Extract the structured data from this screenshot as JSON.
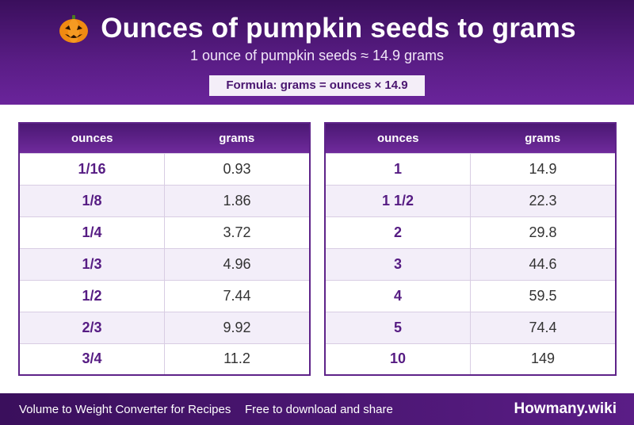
{
  "header": {
    "icon": "pumpkin-icon",
    "title": "Ounces of pumpkin seeds to grams",
    "subtitle": "1 ounce of pumpkin seeds ≈ 14.9 grams",
    "formula": "Formula: grams = ounces × 14.9"
  },
  "table_left": {
    "headers": [
      "ounces",
      "grams"
    ],
    "rows": [
      {
        "ounces": "1/16",
        "grams": "0.93"
      },
      {
        "ounces": "1/8",
        "grams": "1.86"
      },
      {
        "ounces": "1/4",
        "grams": "3.72"
      },
      {
        "ounces": "1/3",
        "grams": "4.96"
      },
      {
        "ounces": "1/2",
        "grams": "7.44"
      },
      {
        "ounces": "2/3",
        "grams": "9.92"
      },
      {
        "ounces": "3/4",
        "grams": "11.2"
      }
    ]
  },
  "table_right": {
    "headers": [
      "ounces",
      "grams"
    ],
    "rows": [
      {
        "ounces": "1",
        "grams": "14.9"
      },
      {
        "ounces": "1 1/2",
        "grams": "22.3"
      },
      {
        "ounces": "2",
        "grams": "29.8"
      },
      {
        "ounces": "3",
        "grams": "44.6"
      },
      {
        "ounces": "4",
        "grams": "59.5"
      },
      {
        "ounces": "5",
        "grams": "74.4"
      },
      {
        "ounces": "10",
        "grams": "149"
      }
    ]
  },
  "footer": {
    "left_text": "Volume to Weight Converter for Recipes",
    "mid_text": "Free to download and share",
    "brand": "Howmany.wiki"
  },
  "colors": {
    "brand_purple": "#5a1d86",
    "header_dark": "#3a0f5c",
    "row_alt": "#f3eef9",
    "ounces_text": "#561c83"
  }
}
